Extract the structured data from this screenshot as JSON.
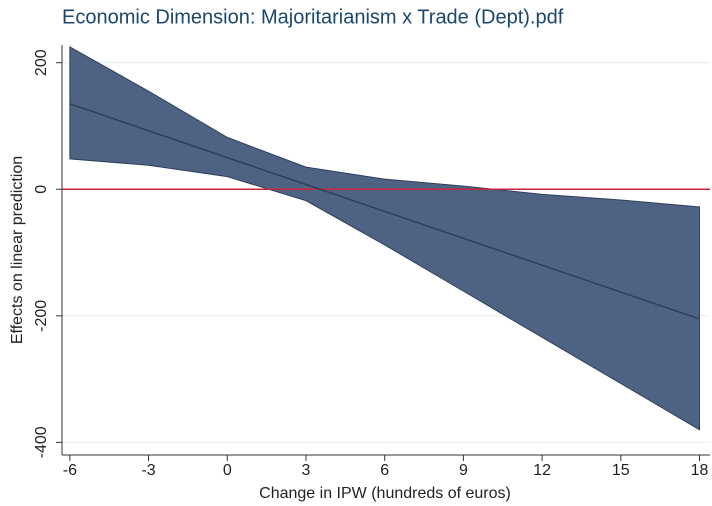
{
  "chart_data": {
    "type": "band-line",
    "title": "Economic Dimension: Majoritarianism x Trade (Dept).pdf",
    "x_label": "Change in IPW (hundreds of euros)",
    "y_label": "Effects on linear prediction",
    "x": [
      -6,
      -3,
      0,
      3,
      6,
      9,
      12,
      15,
      18
    ],
    "values": [
      135,
      92.5,
      50,
      7.5,
      -35,
      -77.5,
      -120,
      -162.5,
      -205
    ],
    "ci_upper": [
      225,
      155,
      82,
      35,
      16,
      5,
      -8,
      -17,
      -28
    ],
    "ci_lower": [
      48,
      38,
      20,
      -18,
      -88,
      -161,
      -234,
      -307,
      -380
    ],
    "line_color": "#2e3f5c",
    "band_color": "#4e6384",
    "reference_line": {
      "value": 0,
      "color": "#c8283c"
    },
    "xlim": [
      -6.3,
      18.4
    ],
    "ylim": [
      -420,
      228
    ],
    "xticks": [
      -6,
      -3,
      0,
      3,
      6,
      9,
      12,
      15,
      18
    ],
    "yticks": [
      -400,
      -200,
      0,
      200
    ],
    "grid": true
  }
}
